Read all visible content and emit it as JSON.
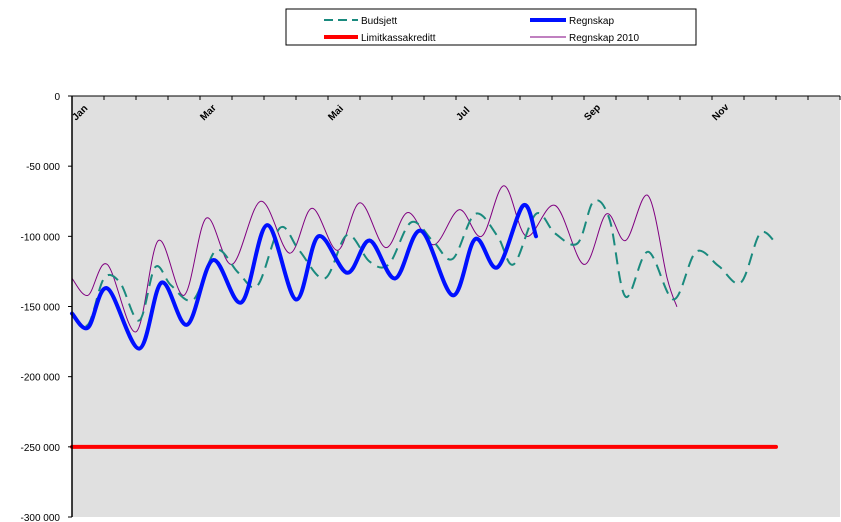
{
  "chart_data": {
    "type": "line",
    "title": "",
    "xlabel": "",
    "ylabel": "",
    "ylim": [
      -300000,
      0
    ],
    "y_ticks": [
      0,
      -50000,
      -100000,
      -150000,
      -200000,
      -250000,
      -300000
    ],
    "y_tick_labels": [
      "0",
      "-50 000",
      "-100 000",
      "-150 000",
      "-200 000",
      "-250 000",
      "-300 000"
    ],
    "x_months": [
      "Jan",
      "Mar",
      "Mai",
      "Jul",
      "Sep",
      "Nov"
    ],
    "x_month_positions": [
      0,
      2,
      4,
      6,
      8,
      10
    ],
    "xlim": [
      0,
      12
    ],
    "legend_position": "top",
    "grid": false,
    "plot_background": "#e0e0e0",
    "series": [
      {
        "name": "Budsjett",
        "color": "#1a8a7e",
        "style": "dashed",
        "points": [
          [
            0.0,
            -155000
          ],
          [
            0.25,
            -163000
          ],
          [
            0.5,
            -130000
          ],
          [
            0.75,
            -133000
          ],
          [
            1.05,
            -160000
          ],
          [
            1.3,
            -122000
          ],
          [
            1.55,
            -135000
          ],
          [
            1.9,
            -145000
          ],
          [
            2.25,
            -110000
          ],
          [
            2.6,
            -126000
          ],
          [
            2.9,
            -135000
          ],
          [
            3.25,
            -94000
          ],
          [
            3.55,
            -110000
          ],
          [
            3.95,
            -130000
          ],
          [
            4.3,
            -99000
          ],
          [
            4.65,
            -118000
          ],
          [
            4.95,
            -120000
          ],
          [
            5.3,
            -90000
          ],
          [
            5.65,
            -104000
          ],
          [
            5.95,
            -116000
          ],
          [
            6.3,
            -84000
          ],
          [
            6.65,
            -100000
          ],
          [
            6.9,
            -120000
          ],
          [
            7.25,
            -84000
          ],
          [
            7.55,
            -98000
          ],
          [
            7.9,
            -105000
          ],
          [
            8.15,
            -75000
          ],
          [
            8.4,
            -88000
          ],
          [
            8.65,
            -143000
          ],
          [
            9.0,
            -111000
          ],
          [
            9.4,
            -145000
          ],
          [
            9.75,
            -111000
          ],
          [
            10.1,
            -121000
          ],
          [
            10.45,
            -133000
          ],
          [
            10.75,
            -98000
          ],
          [
            11.0,
            -105000
          ]
        ]
      },
      {
        "name": "Regnskap",
        "color": "#0010ff",
        "style": "solid",
        "points": [
          [
            0.0,
            -155000
          ],
          [
            0.25,
            -165000
          ],
          [
            0.55,
            -137000
          ],
          [
            1.05,
            -180000
          ],
          [
            1.4,
            -133000
          ],
          [
            1.8,
            -163000
          ],
          [
            2.2,
            -117000
          ],
          [
            2.65,
            -147000
          ],
          [
            3.05,
            -92000
          ],
          [
            3.5,
            -145000
          ],
          [
            3.85,
            -100000
          ],
          [
            4.3,
            -126000
          ],
          [
            4.65,
            -103000
          ],
          [
            5.05,
            -130000
          ],
          [
            5.45,
            -96000
          ],
          [
            5.95,
            -142000
          ],
          [
            6.3,
            -102000
          ],
          [
            6.65,
            -122000
          ],
          [
            7.05,
            -78000
          ],
          [
            7.25,
            -100000
          ]
        ]
      },
      {
        "name": "Limitkassakreditt",
        "color": "#ff0000",
        "style": "solid",
        "points": [
          [
            0,
            -250000
          ],
          [
            11.0,
            -250000
          ]
        ]
      },
      {
        "name": "Regnskap 2010",
        "color": "#800080",
        "style": "solid",
        "points": [
          [
            0.0,
            -130000
          ],
          [
            0.25,
            -142000
          ],
          [
            0.55,
            -120000
          ],
          [
            1.0,
            -168000
          ],
          [
            1.35,
            -103000
          ],
          [
            1.75,
            -142000
          ],
          [
            2.1,
            -87000
          ],
          [
            2.5,
            -120000
          ],
          [
            2.95,
            -75000
          ],
          [
            3.4,
            -112000
          ],
          [
            3.75,
            -80000
          ],
          [
            4.15,
            -110000
          ],
          [
            4.5,
            -76000
          ],
          [
            4.9,
            -108000
          ],
          [
            5.25,
            -83000
          ],
          [
            5.65,
            -106000
          ],
          [
            6.05,
            -81000
          ],
          [
            6.4,
            -100000
          ],
          [
            6.75,
            -64000
          ],
          [
            7.1,
            -100000
          ],
          [
            7.55,
            -78000
          ],
          [
            8.0,
            -120000
          ],
          [
            8.35,
            -84000
          ],
          [
            8.65,
            -103000
          ],
          [
            9.0,
            -71000
          ],
          [
            9.3,
            -130000
          ],
          [
            9.45,
            -150000
          ]
        ]
      }
    ]
  }
}
